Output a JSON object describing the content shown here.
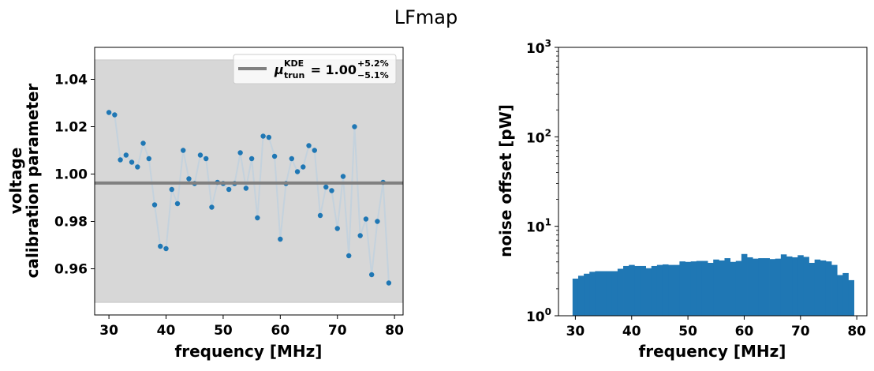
{
  "figure_title": "LFmap",
  "chart_data": [
    {
      "type": "scatter",
      "xlabel": "frequency [MHz]",
      "ylabel_line1": "voltage",
      "ylabel_line2": "calibration parameter",
      "xlim": [
        27.5,
        81.5
      ],
      "ylim": [
        0.9405,
        1.0535
      ],
      "xticks": [
        30,
        40,
        50,
        60,
        70,
        80
      ],
      "xtick_labels": [
        "30",
        "40",
        "50",
        "60",
        "70",
        "80"
      ],
      "yticks": [
        0.96,
        0.98,
        1.0,
        1.02,
        1.04
      ],
      "ytick_labels": [
        "0.96",
        "0.98",
        "1.00",
        "1.02",
        "1.04"
      ],
      "band": [
        0.9458,
        1.0482
      ],
      "hline": 0.9962,
      "point_color": "#1f77b4",
      "line_color": "#c4d2dd",
      "band_color": "#d7d7d7",
      "hline_color": "#808080",
      "legend": {
        "placement": "top-right",
        "label_main": "μ",
        "label_sub": "trun",
        "label_sup": "KDE",
        "label_eq": " = 1.00",
        "label_upper": "+5.2%",
        "label_lower": "−5.1%"
      },
      "x": [
        30,
        31,
        32,
        33,
        34,
        35,
        36,
        37,
        38,
        39,
        40,
        41,
        42,
        43,
        44,
        45,
        46,
        47,
        48,
        49,
        50,
        51,
        52,
        53,
        54,
        55,
        56,
        57,
        58,
        59,
        60,
        61,
        62,
        63,
        64,
        65,
        66,
        67,
        68,
        69,
        70,
        71,
        72,
        73,
        74,
        75,
        76,
        77,
        78,
        79
      ],
      "y": [
        1.026,
        1.025,
        1.006,
        1.008,
        1.005,
        1.003,
        1.013,
        1.0065,
        0.987,
        0.9695,
        0.9685,
        0.9935,
        0.9875,
        1.01,
        0.998,
        0.996,
        1.008,
        1.0065,
        0.986,
        0.9965,
        0.996,
        0.9935,
        0.996,
        1.009,
        0.994,
        1.0065,
        0.9815,
        1.016,
        1.0155,
        1.0075,
        0.9725,
        0.996,
        1.0065,
        1.001,
        1.003,
        1.012,
        1.01,
        0.9825,
        0.9945,
        0.993,
        0.977,
        0.999,
        0.9655,
        1.02,
        0.974,
        0.981,
        0.9575,
        0.98,
        0.9965,
        0.954
      ]
    },
    {
      "type": "bar",
      "xlabel": "frequency [MHz]",
      "ylabel": "noise offset [pW]",
      "yscale": "log",
      "xlim": [
        27,
        81.8
      ],
      "ylim": [
        1,
        1000
      ],
      "xticks": [
        30,
        40,
        50,
        60,
        70,
        80
      ],
      "xtick_labels": [
        "30",
        "40",
        "50",
        "60",
        "70",
        "80"
      ],
      "yticks": [
        1,
        10,
        100,
        1000
      ],
      "ytick_labels": [
        {
          "base": "10",
          "exp": "0"
        },
        {
          "base": "10",
          "exp": "1"
        },
        {
          "base": "10",
          "exp": "2"
        },
        {
          "base": "10",
          "exp": "3"
        }
      ],
      "bar_color": "#1f77b4",
      "bin_start": 29.5,
      "bin_width": 1,
      "values": [
        2.6,
        2.8,
        2.95,
        3.1,
        3.15,
        3.15,
        3.15,
        3.15,
        3.35,
        3.6,
        3.7,
        3.6,
        3.6,
        3.4,
        3.6,
        3.7,
        3.75,
        3.7,
        3.7,
        4.05,
        4.0,
        4.05,
        4.1,
        4.1,
        3.9,
        4.25,
        4.15,
        4.4,
        4.0,
        4.1,
        4.9,
        4.5,
        4.35,
        4.4,
        4.4,
        4.3,
        4.35,
        4.85,
        4.6,
        4.5,
        4.75,
        4.55,
        3.9,
        4.25,
        4.15,
        4.05,
        3.7,
        2.85,
        3.0,
        2.5
      ]
    }
  ]
}
